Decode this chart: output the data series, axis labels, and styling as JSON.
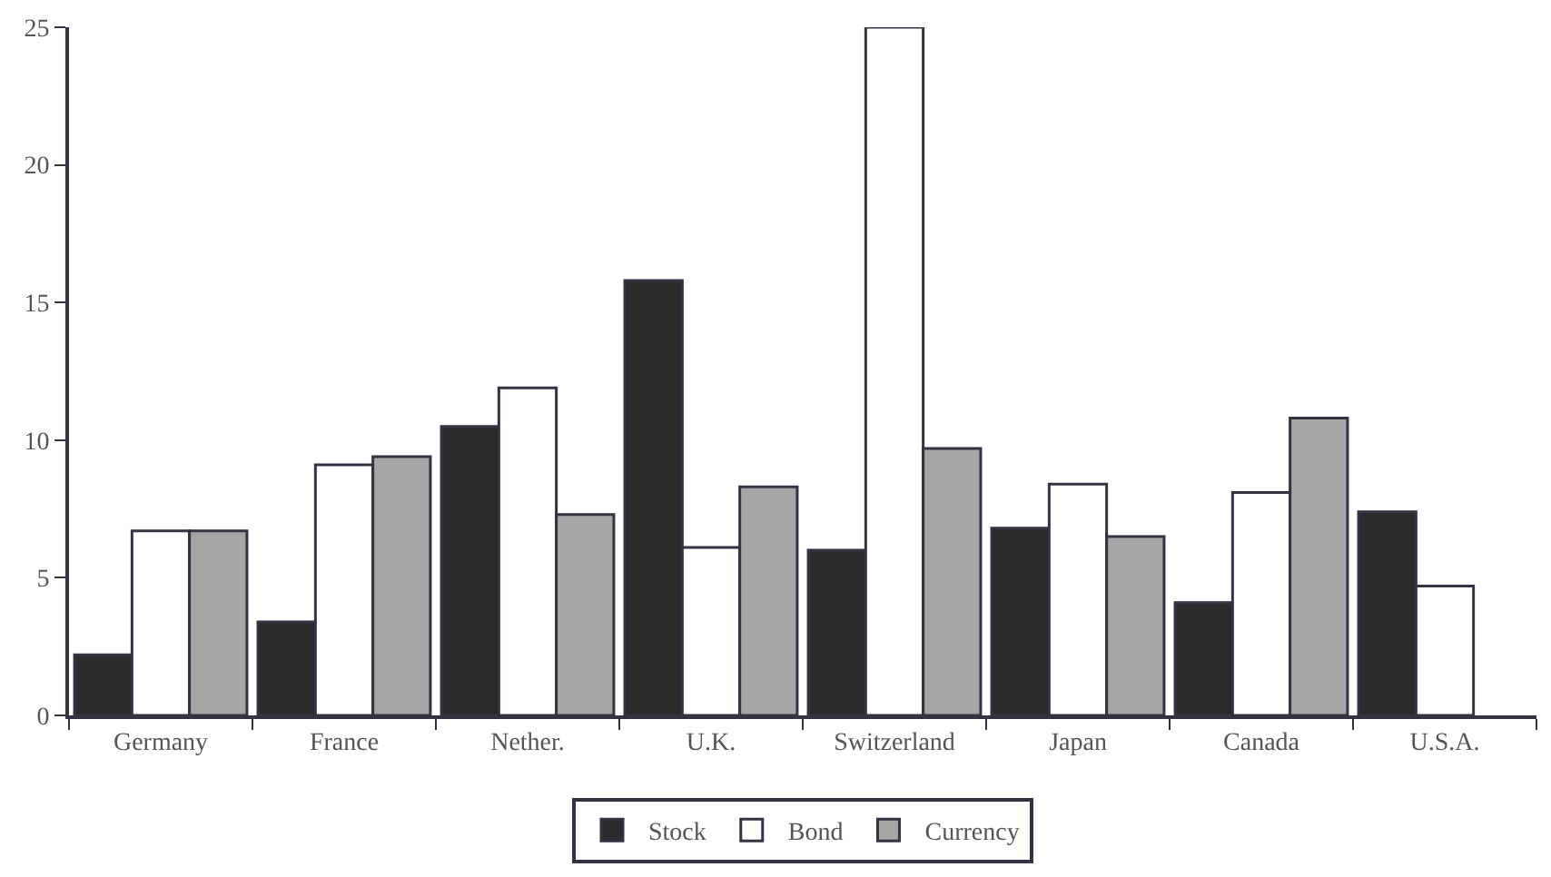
{
  "chart_data": {
    "type": "bar",
    "categories": [
      "Germany",
      "France",
      "Nether.",
      "U.K.",
      "Switzerland",
      "Japan",
      "Canada",
      "U.S.A."
    ],
    "series": [
      {
        "name": "Stock",
        "color": "#2b2b2b",
        "values": [
          2.2,
          3.4,
          10.5,
          15.8,
          6.0,
          6.8,
          4.1,
          7.4
        ]
      },
      {
        "name": "Bond",
        "color": "#ffffff",
        "values": [
          6.7,
          9.1,
          11.9,
          6.1,
          25.0,
          8.4,
          8.1,
          4.7
        ]
      },
      {
        "name": "Currency",
        "color": "#a6a6a6",
        "values": [
          6.7,
          9.4,
          7.3,
          8.3,
          9.7,
          6.5,
          10.8,
          null
        ]
      }
    ],
    "ylim": [
      0,
      25
    ],
    "yticks": [
      0,
      5,
      10,
      15,
      20,
      25
    ],
    "legend": "bottom"
  }
}
